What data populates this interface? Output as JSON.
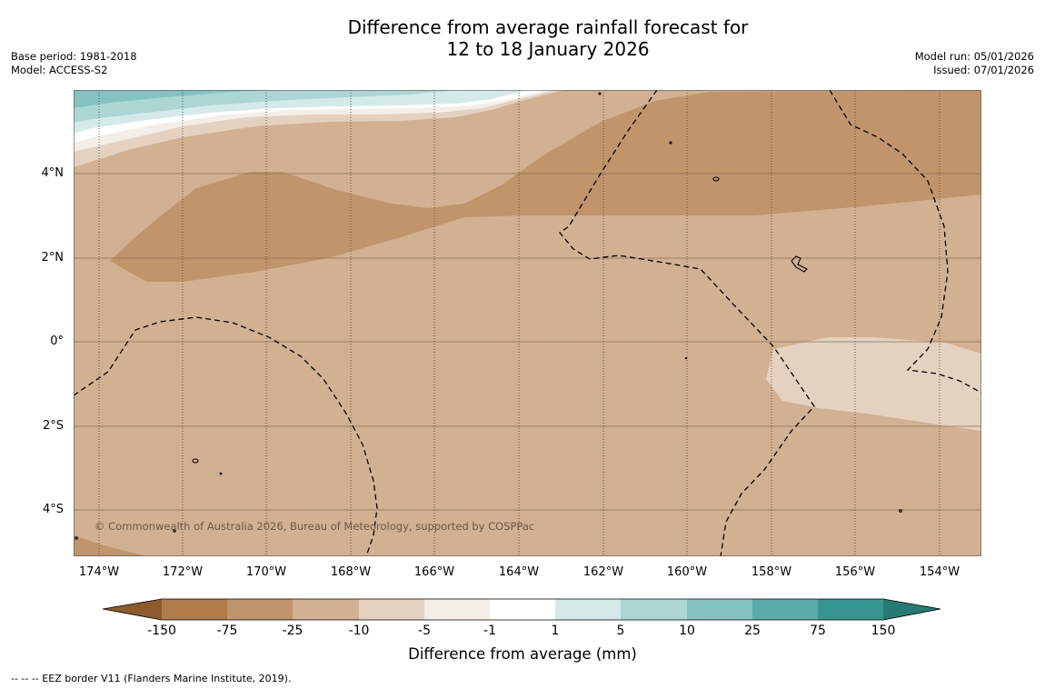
{
  "title": {
    "line1": "Difference from average rainfall forecast for",
    "line2": "12 to 18 January 2026"
  },
  "meta_left": {
    "base_period": "Base period: 1981-2018",
    "model": "Model: ACCESS-S2"
  },
  "meta_right": {
    "model_run": "Model run: 05/01/2026",
    "issued": "Issued: 07/01/2026"
  },
  "map": {
    "lat_ticks": [
      "4°N",
      "2°N",
      "0°",
      "2°S",
      "4°S"
    ],
    "lon_ticks": [
      "174°W",
      "172°W",
      "170°W",
      "168°W",
      "166°W",
      "164°W",
      "162°W",
      "160°W",
      "158°W",
      "156°W",
      "154°W"
    ],
    "copyright": "© Commonwealth of Australia 2026, Bureau of Meteorology, supported by COSPPac",
    "background_color": "#d2b192"
  },
  "legend": {
    "title": "Difference from average (mm)",
    "bins": [
      {
        "color": "#8c5a2b"
      },
      {
        "color": "#b07b49"
      },
      {
        "color": "#c0956c"
      },
      {
        "color": "#d2b192"
      },
      {
        "color": "#e4d1c0"
      },
      {
        "color": "#f3eee8"
      },
      {
        "color": "#ffffff"
      },
      {
        "color": "#d4eae8"
      },
      {
        "color": "#acd6d4"
      },
      {
        "color": "#82c2bf"
      },
      {
        "color": "#5aaba8"
      },
      {
        "color": "#36958f"
      },
      {
        "color": "#267a74"
      }
    ],
    "tick_labels": [
      "-150",
      "-75",
      "-25",
      "-10",
      "-5",
      "-1",
      "1",
      "5",
      "10",
      "25",
      "75",
      "150"
    ]
  },
  "footnote": "--  --  -- EEZ border V11 (Flanders Marine Institute, 2019)."
}
